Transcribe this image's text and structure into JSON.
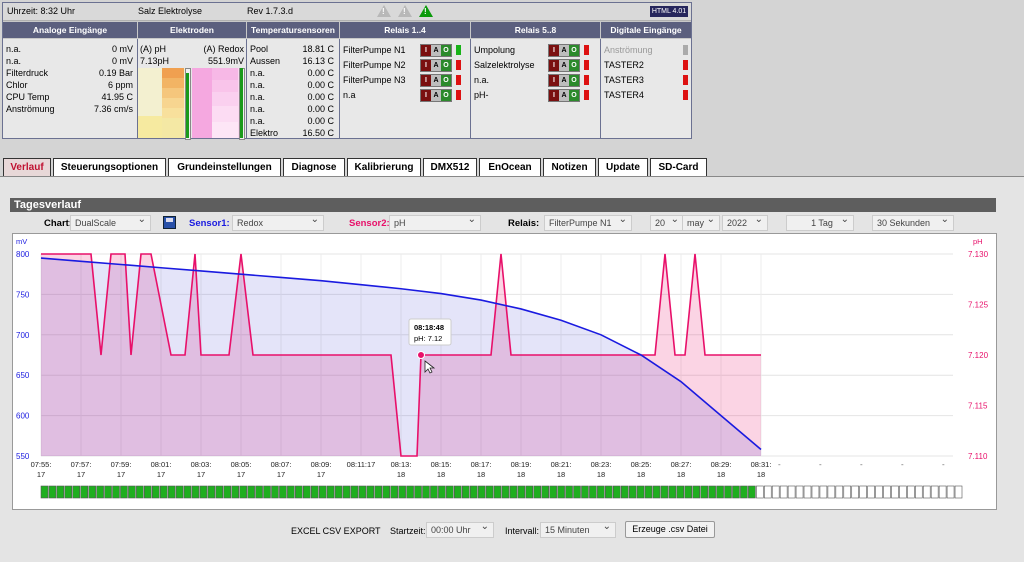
{
  "status": {
    "time": "Uhrzeit: 8:32 Uhr",
    "device": "Salz Elektrolyse",
    "rev": "Rev 1.7.3.d",
    "logo": "HTML 4.01",
    "headers": [
      "Analoge Eingänge",
      "Elektroden",
      "Temperatursensoren",
      "Relais 1..4",
      "Relais 5..8",
      "Digitale Eingänge"
    ],
    "analog": [
      {
        "label": "n.a.",
        "value": "0 mV"
      },
      {
        "label": "n.a.",
        "value": "0 mV"
      },
      {
        "label": "Filterdruck",
        "value": "0.19 Bar"
      },
      {
        "label": "Chlor",
        "value": "6 ppm"
      },
      {
        "label": "CPU Temp",
        "value": "41.95 C"
      },
      {
        "label": "Anströmung",
        "value": "7.36 cm/s"
      }
    ],
    "electrodes": {
      "ph_label": "(A) pH",
      "ph_value": "7.13pH",
      "redox_label": "(A) Redox",
      "redox_value": "551.9mV"
    },
    "temps": [
      {
        "label": "Pool",
        "value": "18.81 C"
      },
      {
        "label": "Aussen",
        "value": "16.13 C"
      },
      {
        "label": "n.a.",
        "value": "0.00 C"
      },
      {
        "label": "n.a.",
        "value": "0.00 C"
      },
      {
        "label": "n.a.",
        "value": "0.00 C"
      },
      {
        "label": "n.a.",
        "value": "0.00 C"
      },
      {
        "label": "n.a.",
        "value": "0.00 C"
      },
      {
        "label": "Elektro",
        "value": "16.50 C"
      }
    ],
    "relays1": [
      {
        "label": "FilterPumpe N1",
        "led": "green",
        "active": "O"
      },
      {
        "label": "FilterPumpe N2",
        "led": "red",
        "active": "A"
      },
      {
        "label": "FilterPumpe N3",
        "led": "red",
        "active": "A"
      },
      {
        "label": "n.a",
        "led": "red",
        "active": "A"
      }
    ],
    "relays2": [
      {
        "label": "Umpolung",
        "led": "red",
        "active": "O"
      },
      {
        "label": "Salzelektrolyse",
        "led": "red",
        "active": "O"
      },
      {
        "label": "n.a.",
        "led": "red",
        "active": "O"
      },
      {
        "label": "pH-",
        "led": "red",
        "active": "O"
      }
    ],
    "digital": [
      {
        "label": "Anströmung",
        "led": "grey"
      },
      {
        "label": "TASTER2",
        "led": "red"
      },
      {
        "label": "TASTER3",
        "led": "red"
      },
      {
        "label": "TASTER4",
        "led": "red"
      }
    ],
    "relay_letters": [
      "I",
      "A",
      "O"
    ]
  },
  "tabs": [
    "Verlauf",
    "Steuerungsoptionen",
    "Grundeinstellungen",
    "Diagnose",
    "Kalibrierung",
    "DMX512",
    "EnOcean",
    "Notizen",
    "Update",
    "SD-Card"
  ],
  "content": {
    "title": "Tagesverlauf",
    "chart_label": "Chart:",
    "chart_value": "DualScale",
    "sensor1_label": "Sensor1:",
    "sensor1_value": "Redox",
    "sensor2_label": "Sensor2:",
    "sensor2_value": "pH",
    "relais_label": "Relais:",
    "relais_value": "FilterPumpe N1",
    "day": "20",
    "month": "may",
    "year": "2022",
    "range": "1 Tag",
    "interval": "30 Sekunden",
    "export_label": "EXCEL CSV EXPORT",
    "startzeit_label": "Startzeit:",
    "startzeit_value": "00:00 Uhr",
    "intervall_label": "Intervall:",
    "intervall_value": "15 Minuten",
    "export_button": "Erzeuge .csv Datei"
  },
  "chart_data": {
    "type": "line",
    "ylabel_left": "mV",
    "ylabel_right": "pH",
    "ylim_left": [
      550,
      800
    ],
    "ylim_right": [
      7.11,
      7.13
    ],
    "yticks_left": [
      "800",
      "750",
      "700",
      "650",
      "600",
      "550"
    ],
    "yticks_right": [
      "7.130",
      "7.125",
      "7.120",
      "7.115",
      "7.110"
    ],
    "xticks": [
      "07:55:\n17",
      "07:57:\n17",
      "07:59:\n17",
      "08:01:\n17",
      "08:03:\n17",
      "08:05:\n17",
      "08:07:\n17",
      "08:09:\n17",
      "08:11:17",
      "08:13:\n18",
      "08:15:\n18",
      "08:17:\n18",
      "08:19:\n18",
      "08:21:\n18",
      "08:23:\n18",
      "08:25:\n18",
      "08:27:\n18",
      "08:29:\n18",
      "08:31:\n18"
    ],
    "series": [
      {
        "name": "Redox",
        "color": "#1a1ae0",
        "x": [
          0,
          2,
          4,
          6,
          8,
          10,
          12,
          14,
          16,
          18,
          20,
          22,
          24,
          26,
          28,
          30,
          32,
          34,
          36
        ],
        "values": [
          795,
          791,
          787,
          783,
          779,
          775,
          771,
          767,
          762,
          757,
          751,
          743,
          732,
          718,
          700,
          675,
          642,
          600,
          558
        ]
      },
      {
        "name": "pH",
        "color": "#e8106a",
        "x": [
          0,
          2.5,
          3.0,
          3.5,
          4.2,
          4.5,
          5.0,
          5.5,
          6.5,
          7.2,
          7.7,
          8.0,
          8.6,
          9.4,
          10.0,
          10.6,
          12.0,
          12.6,
          13.0,
          13.4,
          13.8,
          14.4,
          15.0,
          15.5,
          16.5,
          17.0,
          17.5,
          18.0,
          18.8,
          19.0,
          19.5,
          20.0,
          20.8,
          21.5,
          22.0,
          22.5,
          23.0,
          23.5,
          24.0,
          25.0,
          27.0,
          29.0,
          30.0,
          30.7,
          31.2,
          31.7,
          32.2,
          32.7,
          33.2,
          36.0
        ],
        "values": [
          7.13,
          7.13,
          7.12,
          7.13,
          7.13,
          7.12,
          7.13,
          7.13,
          7.12,
          7.12,
          7.13,
          7.12,
          7.12,
          7.12,
          7.13,
          7.12,
          7.12,
          7.12,
          7.12,
          7.12,
          7.12,
          7.12,
          7.12,
          7.12,
          7.12,
          7.12,
          7.12,
          7.11,
          7.11,
          7.12,
          7.12,
          7.12,
          7.12,
          7.12,
          7.12,
          7.12,
          7.13,
          7.12,
          7.12,
          7.12,
          7.12,
          7.12,
          7.12,
          7.12,
          7.13,
          7.12,
          7.12,
          7.13,
          7.12,
          7.12
        ]
      }
    ],
    "tooltip": {
      "time": "08:18:48",
      "label": "pH:",
      "value": "7.12"
    },
    "relay_track": {
      "on_fraction": 0.78
    }
  }
}
